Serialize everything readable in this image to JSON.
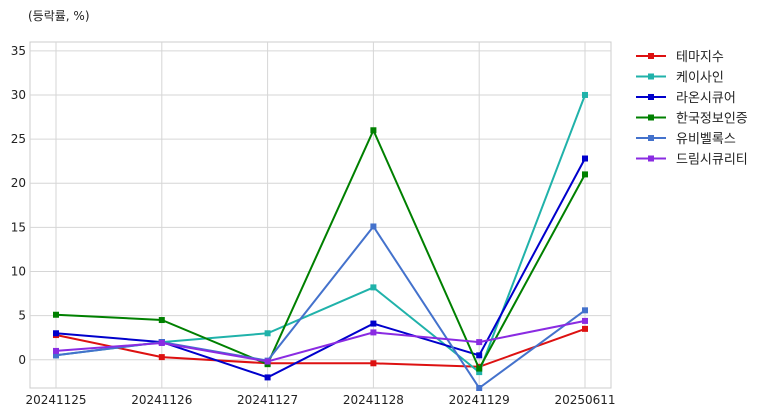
{
  "chart_data": {
    "type": "line",
    "unit_label": "(등락률, %)",
    "categories": [
      "20241125",
      "20241126",
      "20241127",
      "20241128",
      "20241129",
      "20250611"
    ],
    "ylim": [
      -3.2,
      36
    ],
    "yticks": [
      0,
      5,
      10,
      15,
      20,
      25,
      30,
      35
    ],
    "grid": true,
    "legend": "right",
    "series": [
      {
        "name": "테마지수",
        "color": "#dd1111",
        "values": [
          2.8,
          0.3,
          -0.4,
          -0.4,
          -0.8,
          3.5
        ]
      },
      {
        "name": "케이사인",
        "color": "#20b2aa",
        "values": [
          0.5,
          2.0,
          3.0,
          8.2,
          -1.4,
          30.0
        ]
      },
      {
        "name": "라온시큐어",
        "color": "#0000cc",
        "values": [
          3.0,
          2.0,
          -2.0,
          4.1,
          0.5,
          22.8
        ]
      },
      {
        "name": "한국정보인증",
        "color": "#008000",
        "values": [
          5.1,
          4.5,
          -0.5,
          26.0,
          -1.0,
          21.0
        ]
      },
      {
        "name": "유비벨록스",
        "color": "#4472cc",
        "values": [
          0.5,
          2.0,
          -0.1,
          15.1,
          -3.2,
          5.6
        ]
      },
      {
        "name": "드림시큐리티",
        "color": "#8a2be2",
        "values": [
          1.0,
          1.9,
          -0.2,
          3.1,
          2.0,
          4.4
        ]
      }
    ]
  }
}
